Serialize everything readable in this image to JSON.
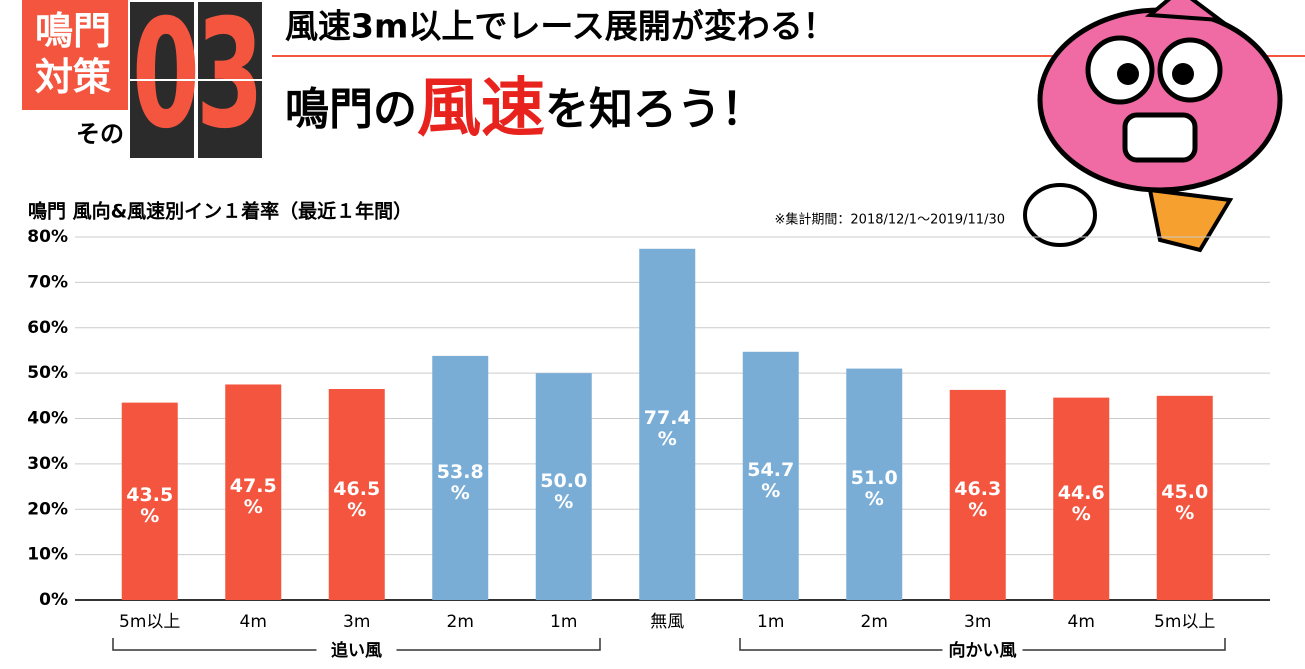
{
  "header": {
    "badge": "鳴門対策",
    "sono": "その",
    "number": "03",
    "headline1": "風速3m以上でレース展開が変わる！",
    "headline2": [
      "鳴門の",
      "風速",
      "を知ろう！"
    ]
  },
  "chart_data": {
    "type": "bar",
    "title": "鳴門 風向&風速別イン１着率（最近１年間）",
    "note": "※集計期間：2018/12/1～2019/11/30",
    "categories": [
      "5m以上",
      "4m",
      "3m",
      "2m",
      "1m",
      "無風",
      "1m",
      "2m",
      "3m",
      "4m",
      "5m以上"
    ],
    "values": [
      43.5,
      47.5,
      46.5,
      53.8,
      50.0,
      77.4,
      54.7,
      51.0,
      46.3,
      44.6,
      45.0
    ],
    "value_labels": [
      "43.5\n%",
      "47.5\n%",
      "46.5\n%",
      "53.8\n%",
      "50.0\n%",
      "77.4\n%",
      "54.7\n%",
      "51.0\n%",
      "46.3\n%",
      "44.6\n%",
      "45.0\n%"
    ],
    "colors": [
      "#f4553f",
      "#f4553f",
      "#f4553f",
      "#7aadd6",
      "#7aadd6",
      "#7aadd6",
      "#7aadd6",
      "#7aadd6",
      "#f4553f",
      "#f4553f",
      "#f4553f"
    ],
    "groups": [
      "追い風",
      "向かい風"
    ],
    "ylim": [
      0,
      80
    ],
    "yticks": [
      {
        "value": 0,
        "label": "0%"
      },
      {
        "value": 10,
        "label": "10%"
      },
      {
        "value": 20,
        "label": "20%"
      },
      {
        "value": 30,
        "label": "30%"
      },
      {
        "value": 40,
        "label": "40%"
      },
      {
        "value": 50,
        "label": "50%"
      },
      {
        "value": 60,
        "label": "60%"
      },
      {
        "value": 70,
        "label": "70%"
      },
      {
        "value": 80,
        "label": "80%"
      }
    ],
    "grid": true
  }
}
